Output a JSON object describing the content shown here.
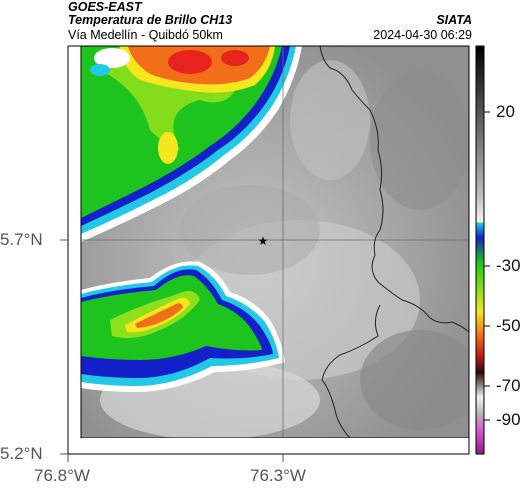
{
  "header": {
    "satellite": "GOES-EAST",
    "product": "Temperatura de Brillo CH13",
    "brand": "SIATA",
    "region": "Vía Medellín - Quibdó 50km",
    "timestamp": "2024-04-30 06:29"
  },
  "axes": {
    "x_ticks": [
      "76.8°W",
      "76.3°W"
    ],
    "y_ticks": [
      "5.7°N",
      "5.2°N"
    ]
  },
  "colorbar": {
    "labels": [
      "20",
      "-30",
      "-50",
      "-70",
      "-90"
    ]
  },
  "colors": {
    "cold_red": "#e8221c",
    "orange": "#f26f1a",
    "yellow": "#f5e61e",
    "green": "#1ec41e",
    "blue": "#1420c8",
    "cyan": "#22c8e6"
  },
  "icons": {
    "marker": "star-icon"
  }
}
